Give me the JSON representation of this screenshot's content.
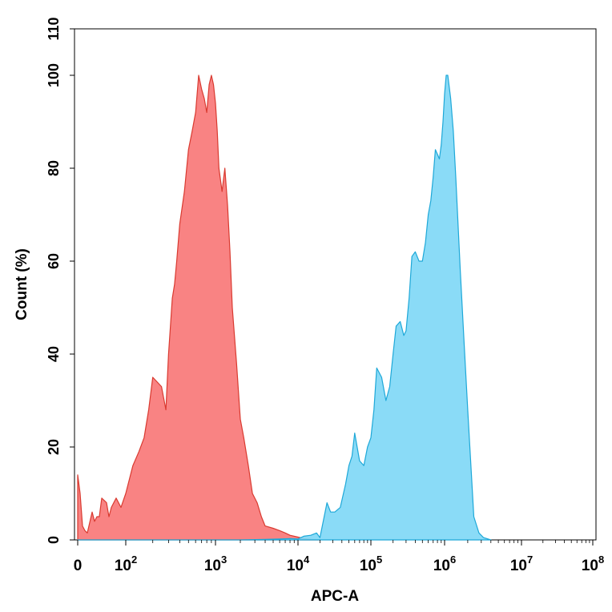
{
  "chart_data": {
    "type": "area",
    "title": "",
    "xlabel": "APC-A",
    "ylabel": "Count (%)",
    "x_scale": "biexponential",
    "x_ticks": [
      {
        "value": 0,
        "base": "0",
        "exp": ""
      },
      {
        "value": 100,
        "base": "10",
        "exp": "2"
      },
      {
        "value": 1000,
        "base": "10",
        "exp": "3"
      },
      {
        "value": 10000,
        "base": "10",
        "exp": "4"
      },
      {
        "value": 100000,
        "base": "10",
        "exp": "5"
      },
      {
        "value": 1000000,
        "base": "10",
        "exp": "6"
      },
      {
        "value": 10000000,
        "base": "10",
        "exp": "7"
      },
      {
        "value": 100000000,
        "base": "10",
        "exp": "8"
      }
    ],
    "y_ticks": [
      "0",
      "20",
      "40",
      "60",
      "80",
      "100",
      "110"
    ],
    "ylim": [
      0,
      110
    ],
    "grid": false,
    "legend": "none",
    "series": [
      {
        "color_fill": "#f87878",
        "color_line": "#d93a30",
        "x": [
          0,
          5,
          10,
          15,
          20,
          30,
          35,
          40,
          45,
          50,
          60,
          65,
          70,
          80,
          90,
          100,
          120,
          140,
          160,
          180,
          200,
          250,
          280,
          300,
          330,
          350,
          370,
          400,
          450,
          500,
          550,
          600,
          650,
          700,
          750,
          800,
          850,
          900,
          950,
          1000,
          1050,
          1100,
          1200,
          1300,
          1400,
          1500,
          1600,
          1800,
          2000,
          2200,
          2500,
          2800,
          3200,
          3600,
          4000,
          5000,
          6000,
          7000,
          8000,
          10000,
          12000,
          15000,
          20000
        ],
        "y": [
          14,
          10,
          3,
          2,
          1.5,
          6,
          4,
          5,
          5,
          9,
          8,
          5,
          7,
          9,
          7,
          10,
          16,
          19,
          22,
          28,
          35,
          33,
          28,
          40,
          52,
          55,
          60,
          68,
          75,
          84,
          88,
          92,
          100,
          97,
          95,
          92,
          98,
          100,
          98,
          94,
          88,
          80,
          75,
          80,
          72,
          62,
          50,
          38,
          26,
          22,
          16,
          10,
          8,
          5,
          3,
          2.5,
          2,
          1.5,
          1,
          0.6,
          0.3,
          0.1,
          0
        ]
      },
      {
        "color_fill": "#80d8f6",
        "color_line": "#1ea8d8",
        "x": [
          0,
          2000,
          4000,
          6000,
          8000,
          10000,
          12000,
          15000,
          18000,
          20000,
          25000,
          28000,
          32000,
          38000,
          45000,
          50000,
          55000,
          60000,
          70000,
          80000,
          90000,
          100000,
          110000,
          120000,
          140000,
          160000,
          180000,
          200000,
          220000,
          250000,
          280000,
          300000,
          330000,
          360000,
          400000,
          450000,
          500000,
          550000,
          600000,
          650000,
          700000,
          750000,
          800000,
          850000,
          900000,
          950000,
          1000000,
          1050000,
          1100000,
          1200000,
          1300000,
          1400000,
          1600000,
          1800000,
          2000000,
          2400000,
          2800000,
          3200000,
          4000000
        ],
        "y": [
          0,
          0,
          0.1,
          0.2,
          0.3,
          0.2,
          0.8,
          1,
          1.5,
          0.5,
          8,
          6,
          6,
          7,
          12,
          16,
          18,
          23,
          17,
          16,
          20,
          22,
          28,
          37,
          35,
          30,
          33,
          40,
          46,
          47,
          44,
          45,
          52,
          61,
          62,
          60,
          60,
          64,
          70,
          73,
          78,
          84,
          83,
          82,
          85,
          90,
          96,
          100,
          100,
          95,
          88,
          78,
          58,
          42,
          28,
          5,
          1.5,
          0.5,
          0
        ]
      }
    ]
  }
}
